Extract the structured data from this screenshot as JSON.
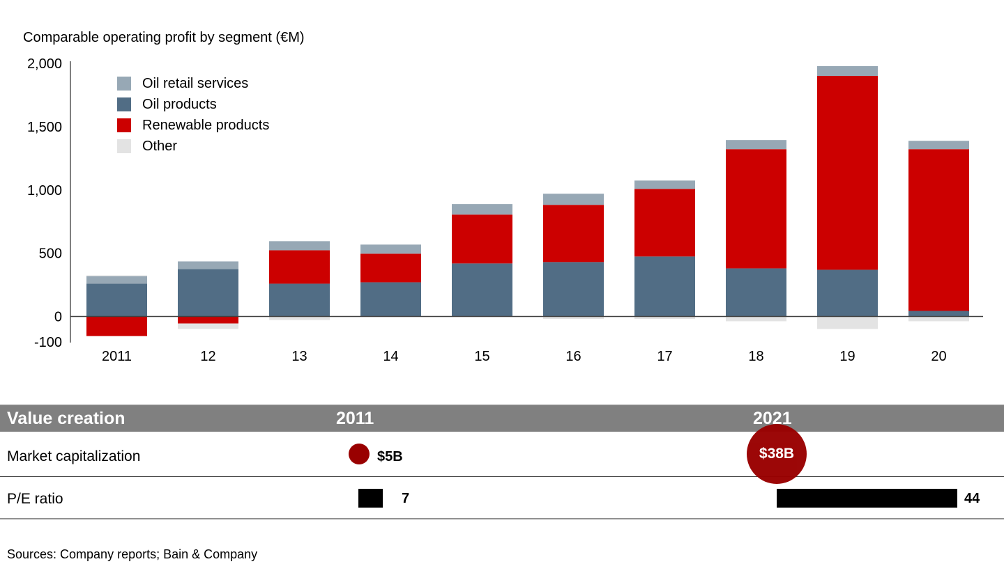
{
  "chart_data": {
    "type": "bar",
    "stacked": true,
    "title": "Comparable operating profit by segment (€M)",
    "xlabel": "",
    "ylabel": "",
    "ylim": [
      -100,
      2000
    ],
    "yticks": [
      {
        "value": 2000,
        "label": "2,000"
      },
      {
        "value": 1500,
        "label": "1,500"
      },
      {
        "value": 1000,
        "label": "1,000"
      },
      {
        "value": 500,
        "label": "500"
      },
      {
        "value": 0,
        "label": "0"
      },
      {
        "value": -100,
        "label": "-100"
      }
    ],
    "categories": [
      "2011",
      "12",
      "13",
      "14",
      "15",
      "16",
      "17",
      "18",
      "19",
      "20"
    ],
    "legend_position": "top-left",
    "series": [
      {
        "name": "Oil products",
        "color": "#516d85",
        "values": [
          259,
          375,
          259,
          270,
          419,
          430,
          474,
          380,
          369,
          44
        ]
      },
      {
        "name": "Renewable products",
        "color": "#cc0000",
        "values": [
          -155,
          -55,
          264,
          226,
          386,
          452,
          534,
          942,
          1532,
          1278
        ]
      },
      {
        "name": "Oil retail services",
        "color": "#97a8b5",
        "values": [
          60,
          60,
          72,
          72,
          83,
          88,
          66,
          72,
          77,
          66
        ]
      },
      {
        "name": "Other",
        "color": "#e3e3e3",
        "values": [
          5,
          -44,
          -28,
          0,
          0,
          -20,
          -20,
          -38,
          -99,
          -38
        ]
      }
    ],
    "legend_order": [
      "Oil retail services",
      "Oil products",
      "Renewable products",
      "Other"
    ]
  },
  "value_creation": {
    "header": "Value creation",
    "years": [
      "2011",
      "2021"
    ],
    "rows": [
      {
        "label": "Market capitalization",
        "values": [
          "$5B",
          "$38B"
        ],
        "numeric": [
          5,
          38
        ],
        "unit": "$B"
      },
      {
        "label": "P/E ratio",
        "values": [
          "7",
          "44"
        ],
        "numeric": [
          7,
          44
        ]
      }
    ],
    "circle_color": "#990000",
    "bar_color": "#000000",
    "header_color": "#808080"
  },
  "source": "Sources: Company reports; Bain & Company"
}
